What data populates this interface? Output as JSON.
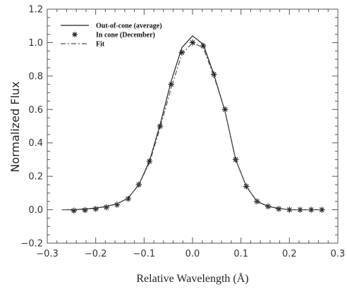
{
  "chart_data": {
    "type": "line",
    "xlabel": "Relative Wavelength (Å)",
    "ylabel": "Normalized Flux",
    "xlim": [
      -0.3,
      0.3
    ],
    "ylim": [
      -0.2,
      1.2
    ],
    "x_ticks": [
      -0.3,
      -0.2,
      -0.1,
      0.0,
      0.1,
      0.2,
      0.3
    ],
    "x_tick_labels": [
      "−0.3",
      "−0.2",
      "−0.1",
      "0.0",
      "0.1",
      "0.2",
      "0.3"
    ],
    "y_ticks": [
      -0.2,
      0.0,
      0.2,
      0.4,
      0.6,
      0.8,
      1.0,
      1.2
    ],
    "y_tick_labels": [
      "−0.2",
      "0.0",
      "0.2",
      "0.4",
      "0.6",
      "0.8",
      "1.0",
      "1.2"
    ],
    "grid": false,
    "legend_position": "top-left",
    "series": [
      {
        "name": "Out-of-cone (average)",
        "style": "solid",
        "color": "#222222",
        "x": [
          -0.27,
          -0.245,
          -0.222,
          -0.2,
          -0.178,
          -0.156,
          -0.133,
          -0.111,
          -0.089,
          -0.067,
          -0.044,
          -0.022,
          0.0,
          0.022,
          0.044,
          0.067,
          0.089,
          0.111,
          0.133,
          0.156,
          0.178,
          0.2,
          0.222,
          0.245,
          0.27
        ],
        "y": [
          0.0,
          0.0,
          0.005,
          0.01,
          0.02,
          0.035,
          0.07,
          0.15,
          0.29,
          0.51,
          0.77,
          0.97,
          1.04,
          0.99,
          0.81,
          0.59,
          0.3,
          0.14,
          0.05,
          0.02,
          0.008,
          0.0,
          0.0,
          0.0,
          0.0
        ]
      },
      {
        "name": "In cone (December)",
        "style": "markers",
        "marker": "asterisk",
        "color": "#222222",
        "x": [
          -0.245,
          -0.222,
          -0.2,
          -0.178,
          -0.156,
          -0.133,
          -0.111,
          -0.089,
          -0.067,
          -0.044,
          -0.022,
          0.0,
          0.022,
          0.044,
          0.067,
          0.089,
          0.111,
          0.133,
          0.156,
          0.178,
          0.2,
          0.222,
          0.245,
          0.267
        ],
        "y": [
          -0.005,
          -0.002,
          0.005,
          0.015,
          0.03,
          0.065,
          0.15,
          0.29,
          0.5,
          0.75,
          0.94,
          1.0,
          0.98,
          0.81,
          0.6,
          0.3,
          0.14,
          0.05,
          0.02,
          0.005,
          0.0,
          0.0,
          0.0,
          0.0
        ]
      },
      {
        "name": "Fit",
        "style": "dash-dot",
        "color": "#555555",
        "x": [
          -0.27,
          -0.245,
          -0.222,
          -0.2,
          -0.178,
          -0.156,
          -0.133,
          -0.111,
          -0.089,
          -0.067,
          -0.044,
          -0.022,
          0.0,
          0.022,
          0.044,
          0.067,
          0.089,
          0.111,
          0.133,
          0.156,
          0.178,
          0.2,
          0.222,
          0.245,
          0.27
        ],
        "y": [
          0.0,
          0.0,
          0.003,
          0.008,
          0.018,
          0.035,
          0.07,
          0.15,
          0.28,
          0.49,
          0.73,
          0.93,
          1.0,
          0.97,
          0.8,
          0.59,
          0.3,
          0.14,
          0.05,
          0.02,
          0.006,
          0.0,
          0.0,
          0.0,
          0.0
        ]
      }
    ]
  }
}
